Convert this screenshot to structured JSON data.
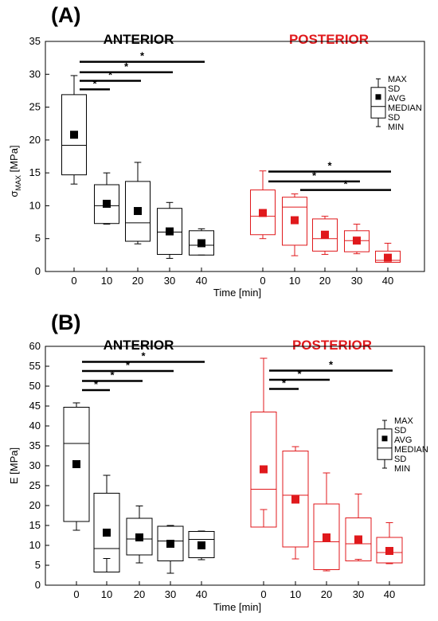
{
  "chart_data": [
    {
      "type": "box",
      "panel_label": "(A)",
      "ylabel_main": "σ",
      "ylabel_sub": "MAX",
      "ylabel_unit": " [MPa]",
      "xlabel": "Time [min]",
      "ylim": [
        0,
        35
      ],
      "yticks": [
        0,
        5,
        10,
        15,
        20,
        25,
        30,
        35
      ],
      "groups": [
        {
          "name": "ANTERIOR",
          "color": "#000000",
          "x": [
            "0",
            "10",
            "20",
            "30",
            "40"
          ],
          "boxes": [
            {
              "max": 29.8,
              "sd_hi": 26.9,
              "avg": 20.8,
              "median": 19.2,
              "sd_lo": 14.7,
              "min": 13.3
            },
            {
              "max": 15.0,
              "sd_hi": 13.2,
              "avg": 10.3,
              "median": 10.0,
              "sd_lo": 7.3,
              "min": 7.2
            },
            {
              "max": 16.6,
              "sd_hi": 13.7,
              "avg": 9.2,
              "median": 7.4,
              "sd_lo": 4.6,
              "min": 4.2
            },
            {
              "max": 10.5,
              "sd_hi": 9.6,
              "avg": 6.1,
              "median": 6.0,
              "sd_lo": 2.6,
              "min": 2.0
            },
            {
              "max": 6.5,
              "sd_hi": 6.2,
              "avg": 4.3,
              "median": 4.0,
              "sd_lo": 2.5,
              "min": 2.5
            }
          ],
          "significance": [
            {
              "from": "0",
              "to": "10",
              "y": 27.7,
              "label": "*"
            },
            {
              "from": "0",
              "to": "20",
              "y": 29.0,
              "label": "*"
            },
            {
              "from": "0",
              "to": "30",
              "y": 30.3,
              "label": "*"
            },
            {
              "from": "0",
              "to": "40",
              "y": 31.9,
              "label": "*"
            }
          ]
        },
        {
          "name": "POSTERIOR",
          "color": "#e0191c",
          "x": [
            "0",
            "10",
            "20",
            "30",
            "40"
          ],
          "boxes": [
            {
              "max": 15.3,
              "sd_hi": 12.4,
              "avg": 8.9,
              "median": 8.4,
              "sd_lo": 5.6,
              "min": 5.0
            },
            {
              "max": 11.8,
              "sd_hi": 11.3,
              "avg": 7.8,
              "median": 9.8,
              "sd_lo": 4.0,
              "min": 2.4
            },
            {
              "max": 8.4,
              "sd_hi": 8.0,
              "avg": 5.6,
              "median": 5.0,
              "sd_lo": 3.1,
              "min": 2.6
            },
            {
              "max": 7.2,
              "sd_hi": 6.2,
              "avg": 4.7,
              "median": 4.7,
              "sd_lo": 3.0,
              "min": 2.7
            },
            {
              "max": 4.3,
              "sd_hi": 3.1,
              "avg": 2.1,
              "median": 1.7,
              "sd_lo": 1.4,
              "min": 1.4
            }
          ],
          "significance": [
            {
              "from": "0",
              "to": "30",
              "y": 13.7,
              "label": "*"
            },
            {
              "from": "0",
              "to": "40",
              "y": 15.2,
              "label": "*"
            },
            {
              "from": "10",
              "to": "40",
              "y": 12.4,
              "label": "*"
            }
          ]
        }
      ],
      "legend": {
        "position": "top-right",
        "labels": [
          "MAX",
          "SD",
          "AVG",
          "MEDIAN",
          "SD",
          "MIN"
        ]
      }
    },
    {
      "type": "box",
      "panel_label": "(B)",
      "ylabel_main": "E",
      "ylabel_sub": "",
      "ylabel_unit": " [MPa]",
      "xlabel": "Time [min]",
      "ylim": [
        0,
        60
      ],
      "yticks": [
        0,
        5,
        10,
        15,
        20,
        25,
        30,
        35,
        40,
        45,
        50,
        55,
        60
      ],
      "groups": [
        {
          "name": "ANTERIOR",
          "color": "#000000",
          "x": [
            "0",
            "10",
            "20",
            "30",
            "40"
          ],
          "boxes": [
            {
              "max": 45.8,
              "sd_hi": 44.7,
              "avg": 30.4,
              "median": 35.6,
              "sd_lo": 16.0,
              "min": 13.8
            },
            {
              "max": 27.6,
              "sd_hi": 23.1,
              "avg": 13.2,
              "median": 9.2,
              "sd_lo": 3.3,
              "min": 6.7
            },
            {
              "max": 19.9,
              "sd_hi": 16.8,
              "avg": 12.0,
              "median": 11.6,
              "sd_lo": 7.6,
              "min": 5.6
            },
            {
              "max": 15.0,
              "sd_hi": 14.8,
              "avg": 10.4,
              "median": 11.1,
              "sd_lo": 6.1,
              "min": 3.0
            },
            {
              "max": 13.6,
              "sd_hi": 13.5,
              "avg": 10.0,
              "median": 11.5,
              "sd_lo": 6.9,
              "min": 6.4
            }
          ],
          "significance": [
            {
              "from": "0",
              "to": "10",
              "y": 49.0,
              "label": "*"
            },
            {
              "from": "0",
              "to": "20",
              "y": 51.3,
              "label": "*"
            },
            {
              "from": "0",
              "to": "30",
              "y": 53.8,
              "label": "*"
            },
            {
              "from": "0",
              "to": "40",
              "y": 56.1,
              "label": "*"
            }
          ]
        },
        {
          "name": "POSTERIOR",
          "color": "#e0191c",
          "x": [
            "0",
            "10",
            "20",
            "30",
            "40"
          ],
          "boxes": [
            {
              "max": 57.0,
              "sd_hi": 43.5,
              "avg": 29.1,
              "median": 24.1,
              "sd_lo": 14.6,
              "min": 19.0
            },
            {
              "max": 34.8,
              "sd_hi": 33.7,
              "avg": 21.5,
              "median": 22.6,
              "sd_lo": 9.6,
              "min": 6.6
            },
            {
              "max": 28.2,
              "sd_hi": 20.4,
              "avg": 12.0,
              "median": 10.9,
              "sd_lo": 3.9,
              "min": 3.6
            },
            {
              "max": 22.9,
              "sd_hi": 16.9,
              "avg": 11.5,
              "median": 10.4,
              "sd_lo": 6.1,
              "min": 6.5
            },
            {
              "max": 15.7,
              "sd_hi": 12.0,
              "avg": 8.6,
              "median": 8.2,
              "sd_lo": 5.6,
              "min": 5.4
            }
          ],
          "significance": [
            {
              "from": "0",
              "to": "10",
              "y": 49.3,
              "label": "*"
            },
            {
              "from": "0",
              "to": "20",
              "y": 51.6,
              "label": "*"
            },
            {
              "from": "0",
              "to": "40",
              "y": 53.9,
              "label": "*"
            }
          ]
        }
      ],
      "legend": {
        "position": "right",
        "labels": [
          "MAX",
          "SD",
          "AVG",
          "MEDIAN",
          "SD",
          "MIN"
        ]
      }
    }
  ]
}
